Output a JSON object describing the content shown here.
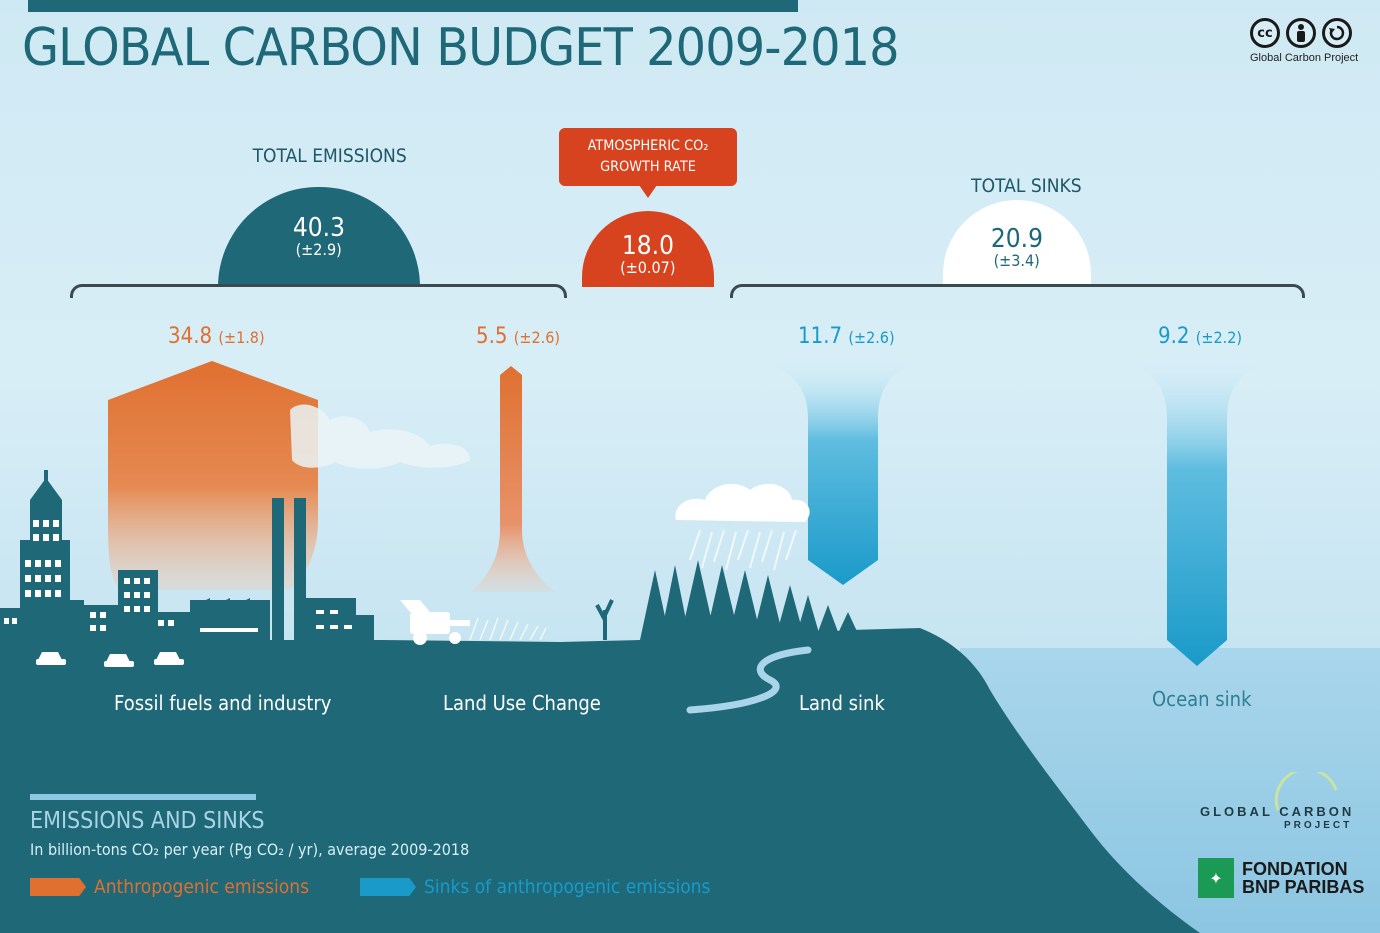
{
  "title": "GLOBAL CARBON BUDGET 2009-2018",
  "license": {
    "icons": [
      "cc-icon",
      "attribution-icon",
      "share-alike-icon"
    ],
    "cc_symbol": "cc",
    "organization": "Global Carbon Project"
  },
  "totals": {
    "emissions": {
      "label": "TOTAL EMISSIONS",
      "value": "40.3",
      "uncertainty": "(±2.9)"
    },
    "atmospheric": {
      "label_line1": "ATMOSPHERIC CO₂",
      "label_line2": "GROWTH RATE",
      "value": "18.0",
      "uncertainty": "(±0.07)"
    },
    "sinks": {
      "label": "TOTAL SINKS",
      "value": "20.9",
      "uncertainty": "(±3.4)"
    }
  },
  "flows": [
    {
      "value": "34.8",
      "uncertainty": "(±1.8)",
      "category": "Fossil fuels and industry",
      "kind": "emission"
    },
    {
      "value": "5.5",
      "uncertainty": "(±2.6)",
      "category": "Land Use Change",
      "kind": "emission"
    },
    {
      "value": "11.7",
      "uncertainty": "(±2.6)",
      "category": "Land sink",
      "kind": "sink"
    },
    {
      "value": "9.2",
      "uncertainty": "(±2.2)",
      "category": "Ocean sink",
      "kind": "sink"
    }
  ],
  "legend": {
    "title": "EMISSIONS AND SINKS",
    "subtitle": "In billion-tons CO₂ per year (Pg CO₂ / yr), average 2009-2018",
    "items": [
      {
        "label": "Anthropogenic emissions",
        "color": "#e07030"
      },
      {
        "label": "Sinks of anthropogenic emissions",
        "color": "#1a9ac9"
      }
    ]
  },
  "logos": {
    "gcp_line1": "GLOBAL CARBON",
    "gcp_line2": "PROJECT",
    "bnp_line1": "FONDATION",
    "bnp_line2": "BNP PARIBAS"
  },
  "colors": {
    "land": "#1e6878",
    "emission": "#e07030",
    "sink": "#1a9ac9",
    "atmosphere": "#d8431f"
  }
}
